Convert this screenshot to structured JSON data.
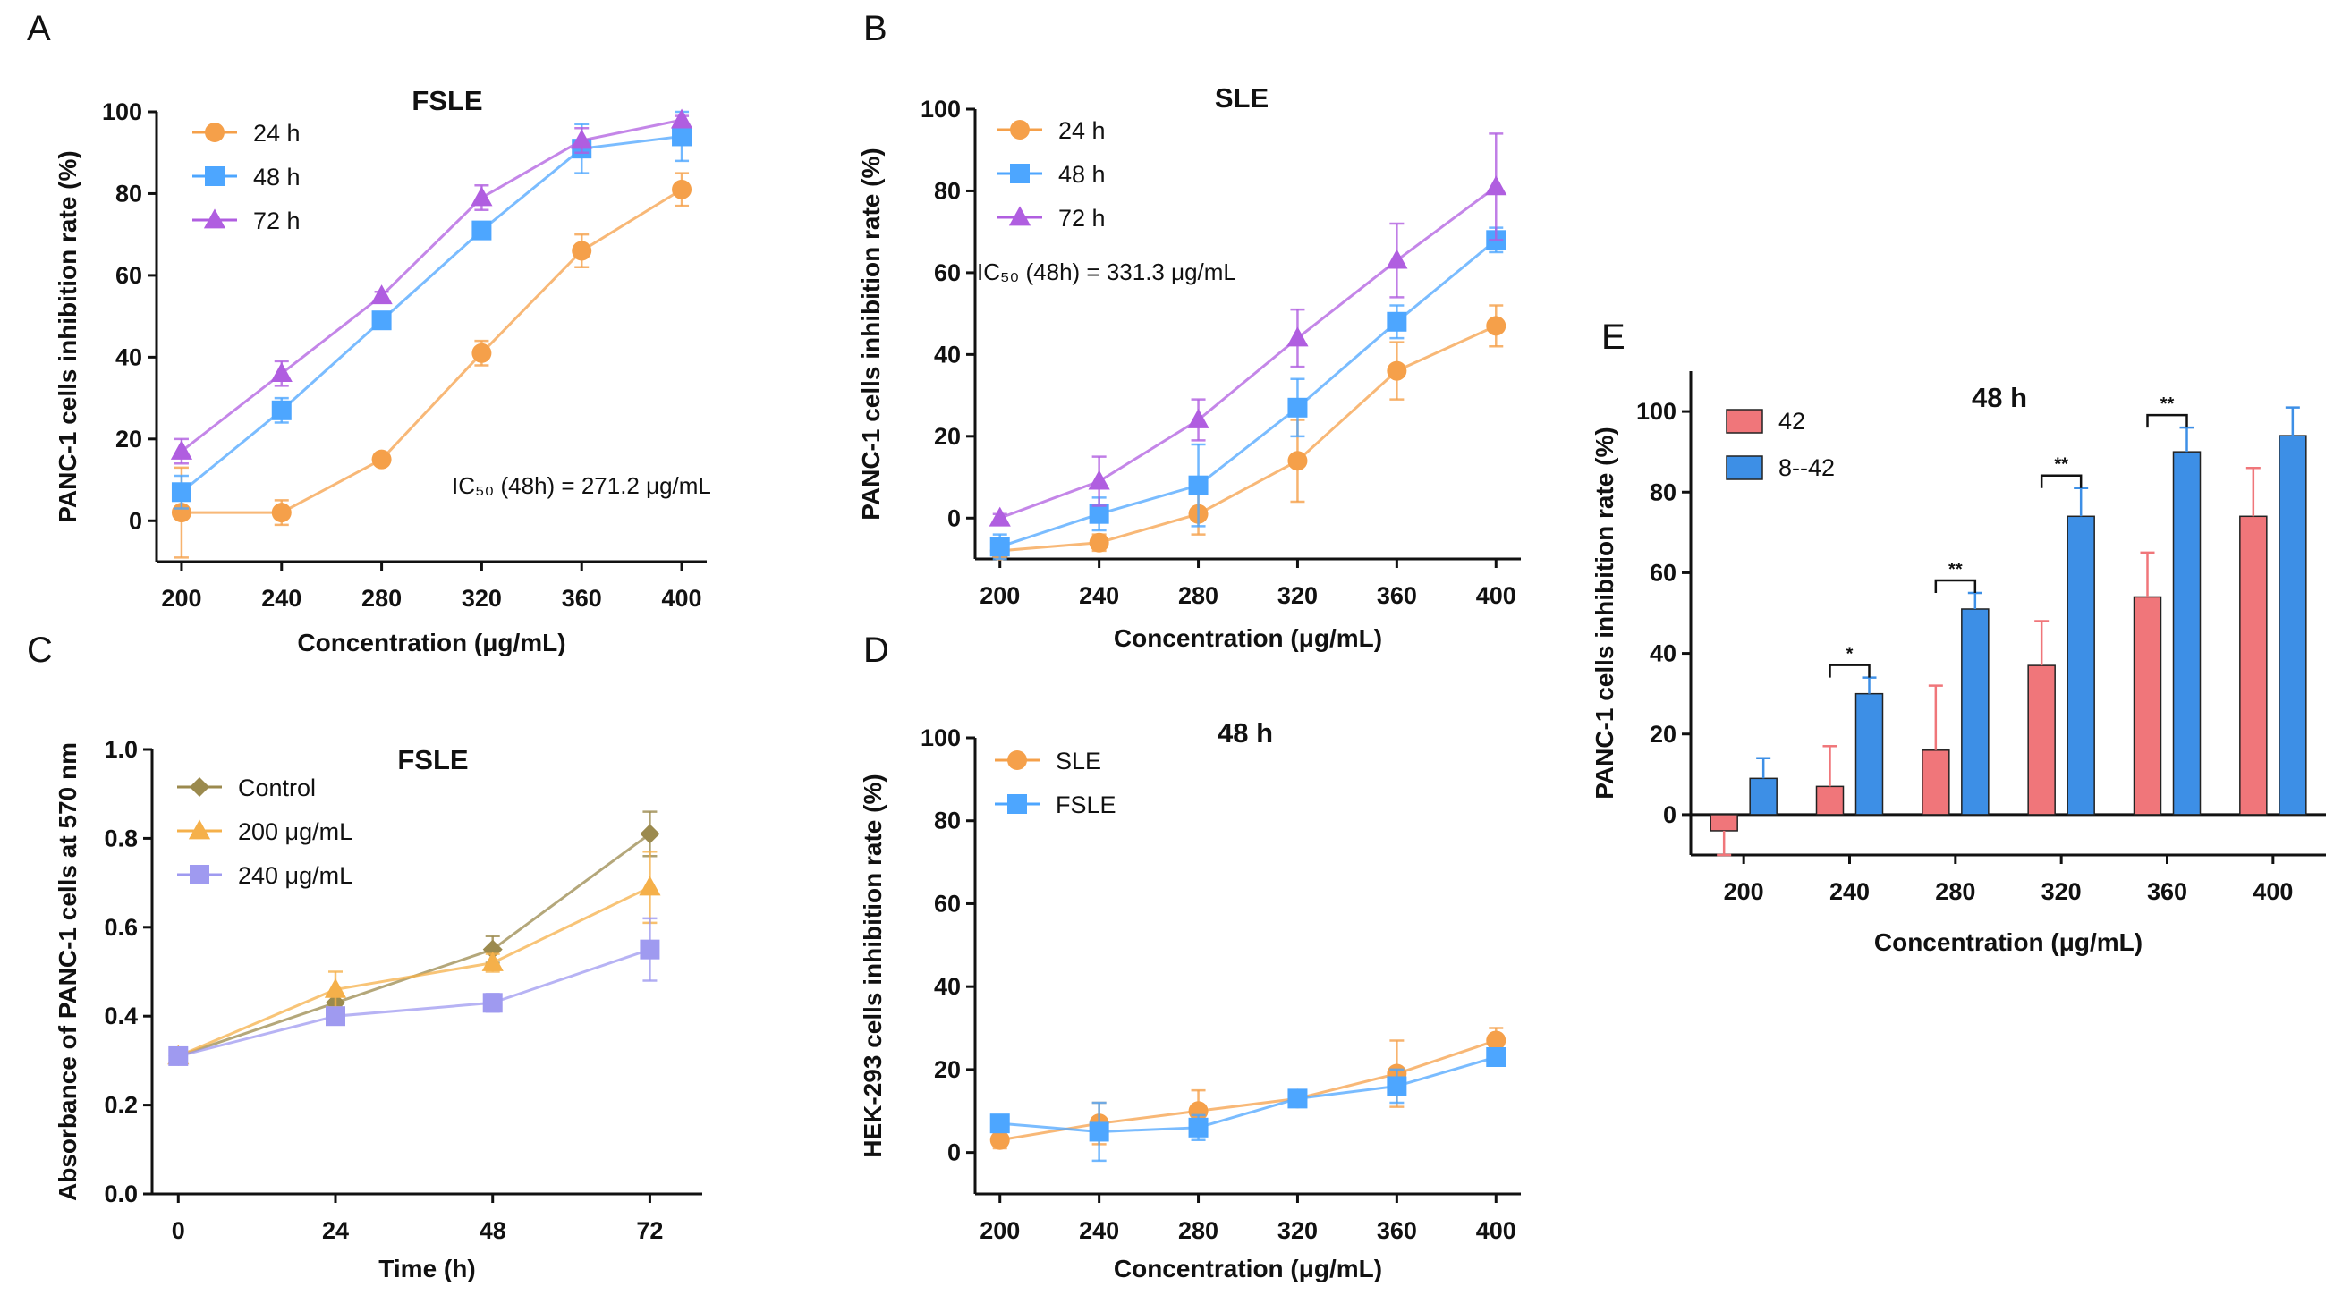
{
  "figure_title": "",
  "chart_data": [
    {
      "panel": "A",
      "type": "line",
      "title": "FSLE",
      "xlabel": "Concentration (μg/mL)",
      "ylabel": "PANC-1 cells inhibition rate (%)",
      "categories": [
        "200",
        "240",
        "280",
        "320",
        "360",
        "400"
      ],
      "x": [
        200,
        240,
        280,
        320,
        360,
        400
      ],
      "xlim": [
        190,
        410
      ],
      "ylim": [
        -10,
        100
      ],
      "yticks": [
        0,
        20,
        40,
        60,
        80,
        100
      ],
      "legend_position": "top-left",
      "annotation": "IC₅₀ (48h) = 271.2 μg/mL",
      "series": [
        {
          "name": "24 h",
          "color": "#f5a04a",
          "marker": "circle",
          "values": [
            2,
            2,
            15,
            41,
            66,
            81
          ],
          "errors": [
            11,
            3,
            1,
            3,
            4,
            4
          ]
        },
        {
          "name": "48 h",
          "color": "#4da6ff",
          "marker": "square",
          "values": [
            7,
            27,
            49,
            71,
            91,
            94
          ],
          "errors": [
            4,
            3,
            2,
            2,
            6,
            6
          ]
        },
        {
          "name": "72 h",
          "color": "#b05ee0",
          "marker": "triangle",
          "values": [
            17,
            36,
            55,
            79,
            93,
            98
          ],
          "errors": [
            3,
            3,
            1,
            3,
            3,
            1
          ]
        }
      ]
    },
    {
      "panel": "B",
      "type": "line",
      "title": "SLE",
      "xlabel": "Concentration (μg/mL)",
      "ylabel": "PANC-1 cells inhibition rate (%)",
      "categories": [
        "200",
        "240",
        "280",
        "320",
        "360",
        "400"
      ],
      "x": [
        200,
        240,
        280,
        320,
        360,
        400
      ],
      "xlim": [
        190,
        410
      ],
      "ylim": [
        -10,
        100
      ],
      "yticks": [
        0,
        20,
        40,
        60,
        80,
        100
      ],
      "legend_position": "top-left",
      "annotation": "IC₅₀ (48h) = 331.3 μg/mL",
      "series": [
        {
          "name": "24 h",
          "color": "#f5a04a",
          "marker": "circle",
          "values": [
            -8,
            -6,
            1,
            14,
            36,
            47
          ],
          "errors": [
            1,
            2,
            5,
            10,
            7,
            5
          ]
        },
        {
          "name": "48 h",
          "color": "#4da6ff",
          "marker": "square",
          "values": [
            -7,
            1,
            8,
            27,
            48,
            68
          ],
          "errors": [
            3,
            4,
            10,
            7,
            4,
            3
          ]
        },
        {
          "name": "72 h",
          "color": "#b05ee0",
          "marker": "triangle",
          "values": [
            0,
            9,
            24,
            44,
            63,
            81
          ],
          "errors": [
            1,
            6,
            5,
            7,
            9,
            13
          ]
        }
      ]
    },
    {
      "panel": "C",
      "type": "line",
      "title": "FSLE",
      "xlabel": "Time (h)",
      "ylabel": "Absorbance of PANC-1 cells at 570 nm",
      "categories": [
        "0",
        "24",
        "48",
        "72"
      ],
      "x": [
        0,
        24,
        48,
        72
      ],
      "xlim": [
        -4,
        80
      ],
      "ylim": [
        0,
        1.0
      ],
      "yticks": [
        0.0,
        0.2,
        0.4,
        0.6,
        0.8,
        1.0
      ],
      "ytick_labels": [
        "0.0",
        "0.2",
        "0.4",
        "0.6",
        "0.8",
        "1.0"
      ],
      "legend_position": "top-left",
      "series": [
        {
          "name": "Control",
          "color": "#9b8a4e",
          "marker": "diamond",
          "values": [
            0.31,
            0.43,
            0.55,
            0.81
          ],
          "errors": [
            0.0,
            0.02,
            0.03,
            0.05
          ]
        },
        {
          "name": "200 μg/mL",
          "color": "#f5b04a",
          "marker": "triangle",
          "values": [
            0.31,
            0.46,
            0.52,
            0.69
          ],
          "errors": [
            0.0,
            0.04,
            0.02,
            0.08
          ]
        },
        {
          "name": "240 μg/mL",
          "color": "#9f9af0",
          "marker": "square",
          "values": [
            0.31,
            0.4,
            0.43,
            0.55
          ],
          "errors": [
            0.0,
            0.01,
            0.02,
            0.07
          ]
        }
      ]
    },
    {
      "panel": "D",
      "type": "line",
      "title": "48 h",
      "xlabel": "Concentration (μg/mL)",
      "ylabel": "HEK-293 cells inhibition rate (%)",
      "categories": [
        "200",
        "240",
        "280",
        "320",
        "360",
        "400"
      ],
      "x": [
        200,
        240,
        280,
        320,
        360,
        400
      ],
      "xlim": [
        190,
        410
      ],
      "ylim": [
        -10,
        100
      ],
      "yticks": [
        0,
        20,
        40,
        60,
        80,
        100
      ],
      "legend_position": "top-left",
      "series": [
        {
          "name": "SLE",
          "color": "#f5a04a",
          "marker": "circle",
          "values": [
            3,
            7,
            10,
            13,
            19,
            27
          ],
          "errors": [
            2,
            5,
            5,
            2,
            8,
            3
          ]
        },
        {
          "name": "FSLE",
          "color": "#4da6ff",
          "marker": "square",
          "values": [
            7,
            5,
            6,
            13,
            16,
            23
          ],
          "errors": [
            2,
            7,
            3,
            2,
            4,
            2
          ]
        }
      ]
    },
    {
      "panel": "E",
      "type": "bar",
      "title": "48 h",
      "xlabel": "Concentration (μg/mL)",
      "ylabel": "PANC-1 cells inhibition rate (%)",
      "categories": [
        "200",
        "240",
        "280",
        "320",
        "360",
        "400"
      ],
      "ylim": [
        -10,
        110
      ],
      "yticks": [
        0,
        20,
        40,
        60,
        80,
        100
      ],
      "legend_position": "top-left",
      "series": [
        {
          "name": "42",
          "color": "#f0767a",
          "values": [
            -4,
            7,
            16,
            37,
            54,
            74
          ],
          "errors": [
            6,
            10,
            16,
            11,
            11,
            12
          ]
        },
        {
          "name": "8--42",
          "color": "#3d8fe6",
          "values": [
            9,
            30,
            51,
            74,
            90,
            94
          ],
          "errors": [
            5,
            4,
            4,
            7,
            6,
            7
          ]
        }
      ],
      "significance": [
        {
          "category_index": 1,
          "label": "*"
        },
        {
          "category_index": 2,
          "label": "**"
        },
        {
          "category_index": 3,
          "label": "**"
        },
        {
          "category_index": 4,
          "label": "**"
        }
      ]
    }
  ]
}
